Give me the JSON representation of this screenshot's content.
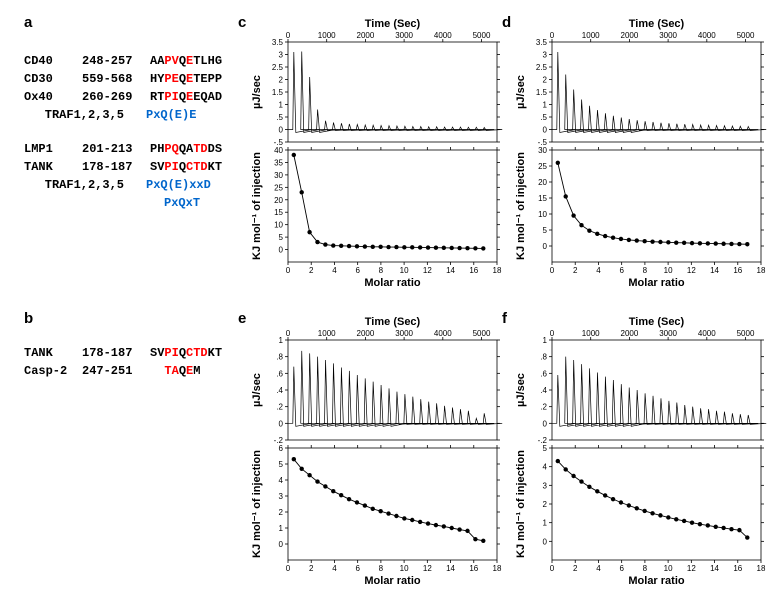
{
  "panel_labels": {
    "a": "a",
    "b": "b",
    "c": "c",
    "d": "d",
    "e": "e",
    "f": "f"
  },
  "colors": {
    "red": "#ff0000",
    "blue": "#0066cc",
    "black": "#000000",
    "bg": "#ffffff"
  },
  "panel_a": {
    "rows": [
      {
        "name": "CD40",
        "range": "248-257",
        "seq": [
          [
            "AA",
            "b"
          ],
          [
            "PV",
            "r"
          ],
          [
            "Q",
            "b"
          ],
          [
            "E",
            "r"
          ],
          [
            "TLHG",
            "b"
          ]
        ]
      },
      {
        "name": "CD30",
        "range": "559-568",
        "seq": [
          [
            "HY",
            "b"
          ],
          [
            "PE",
            "r"
          ],
          [
            "Q",
            "b"
          ],
          [
            "E",
            "r"
          ],
          [
            "TEPP",
            "b"
          ]
        ]
      },
      {
        "name": "Ox40",
        "range": "260-269",
        "seq": [
          [
            "RT",
            "b"
          ],
          [
            "PI",
            "r"
          ],
          [
            "Q",
            "b"
          ],
          [
            "E",
            "r"
          ],
          [
            "EQAD",
            "b"
          ]
        ]
      },
      {
        "name": "",
        "range": "TRAF1,2,3,5",
        "seq": [
          [
            "P",
            "bl"
          ],
          [
            "x",
            "bl"
          ],
          [
            "Q(E)E",
            "bl"
          ]
        ]
      }
    ],
    "rows2": [
      {
        "name": "LMP1",
        "range": "201-213",
        "seq": [
          [
            "PH",
            "b"
          ],
          [
            "PQ",
            "r"
          ],
          [
            "QA",
            "b"
          ],
          [
            "TD",
            "r"
          ],
          [
            "DS",
            "b"
          ]
        ]
      },
      {
        "name": "TANK",
        "range": "178-187",
        "seq": [
          [
            "SV",
            "b"
          ],
          [
            "PI",
            "r"
          ],
          [
            "Q",
            "b"
          ],
          [
            "C",
            "r"
          ],
          [
            "TD",
            "r"
          ],
          [
            "KT",
            "b"
          ]
        ]
      },
      {
        "name": "",
        "range": "TRAF1,2,3,5",
        "seq": [
          [
            "P",
            "bl"
          ],
          [
            "x",
            "bl"
          ],
          [
            "Q(E)",
            "bl"
          ],
          [
            "xx",
            "bl"
          ],
          [
            "D",
            "bl"
          ]
        ]
      },
      {
        "name": "",
        "range": "",
        "seq": [
          [
            "P",
            "bl"
          ],
          [
            "x",
            "bl"
          ],
          [
            "Q",
            "bl"
          ],
          [
            "x",
            "bl"
          ],
          [
            "T",
            "bl"
          ]
        ]
      }
    ]
  },
  "panel_b": {
    "rows": [
      {
        "name": "TANK",
        "range": "178-187",
        "seq": [
          [
            "SV",
            "b"
          ],
          [
            "PI",
            "r"
          ],
          [
            "Q",
            "b"
          ],
          [
            "C",
            "r"
          ],
          [
            "TD",
            "r"
          ],
          [
            "KT",
            "b"
          ]
        ]
      },
      {
        "name": "Casp-2",
        "range": "247-251",
        "seq": [
          [
            "  ",
            "b"
          ],
          [
            "TA",
            "r"
          ],
          [
            "Q",
            "b"
          ],
          [
            "E",
            "r"
          ],
          [
            "M",
            "b"
          ]
        ]
      }
    ]
  },
  "itc": {
    "time_label": "Time (Sec)",
    "time_ticks": [
      0,
      1000,
      2000,
      3000,
      4000,
      5000
    ],
    "molar_label": "Molar ratio",
    "molar_ticks": [
      0,
      2,
      4,
      6,
      8,
      10,
      12,
      14,
      16,
      18
    ],
    "top_ylabel": "µJ/sec",
    "bot_ylabel": "KJ mol⁻¹ of injection",
    "panels": {
      "c": {
        "top_ylim": [
          -0.5,
          3.5
        ],
        "top_yticks": [
          -0.5,
          0,
          0.5,
          1,
          1.5,
          2,
          2.5,
          3,
          3.5
        ],
        "bot_ylim": [
          -5,
          40
        ],
        "bot_yticks": [
          0,
          5,
          10,
          15,
          20,
          25,
          30,
          35,
          40
        ],
        "spikes": [
          3.1,
          3.12,
          2.1,
          0.8,
          0.35,
          0.28,
          0.25,
          0.22,
          0.2,
          0.18,
          0.17,
          0.16,
          0.15,
          0.14,
          0.13,
          0.12,
          0.12,
          0.11,
          0.11,
          0.1,
          0.1,
          0.1,
          0.09,
          0.09,
          0.08
        ],
        "dots": [
          38,
          23,
          7,
          3,
          2,
          1.6,
          1.5,
          1.4,
          1.3,
          1.2,
          1.1,
          1.1,
          1.0,
          1.0,
          0.9,
          0.9,
          0.85,
          0.8,
          0.75,
          0.7,
          0.65,
          0.6,
          0.55,
          0.5,
          0.45
        ]
      },
      "d": {
        "top_ylim": [
          -0.5,
          3.5
        ],
        "top_yticks": [
          -0.5,
          0,
          0.5,
          1,
          1.5,
          2,
          2.5,
          3,
          3.5
        ],
        "bot_ylim": [
          -5,
          30
        ],
        "bot_yticks": [
          0,
          5,
          10,
          15,
          20,
          25,
          30
        ],
        "spikes": [
          3.1,
          2.2,
          1.6,
          1.2,
          0.95,
          0.78,
          0.65,
          0.55,
          0.48,
          0.42,
          0.37,
          0.33,
          0.3,
          0.27,
          0.25,
          0.23,
          0.21,
          0.2,
          0.18,
          0.17,
          0.16,
          0.15,
          0.14,
          0.13,
          0.12
        ],
        "dots": [
          26,
          15.5,
          9.5,
          6.5,
          4.8,
          3.8,
          3.1,
          2.6,
          2.2,
          1.9,
          1.7,
          1.5,
          1.35,
          1.25,
          1.15,
          1.05,
          1.0,
          0.9,
          0.85,
          0.8,
          0.75,
          0.7,
          0.65,
          0.6,
          0.55
        ]
      },
      "e": {
        "top_ylim": [
          -0.2,
          1.0
        ],
        "top_yticks": [
          -0.2,
          0,
          0.2,
          0.4,
          0.6,
          0.8,
          1.0
        ],
        "bot_ylim": [
          -1,
          6
        ],
        "bot_yticks": [
          0,
          1,
          2,
          3,
          4,
          5,
          6
        ],
        "spikes": [
          0.68,
          0.87,
          0.84,
          0.8,
          0.76,
          0.72,
          0.67,
          0.63,
          0.58,
          0.54,
          0.5,
          0.46,
          0.42,
          0.38,
          0.35,
          0.32,
          0.29,
          0.26,
          0.24,
          0.21,
          0.19,
          0.17,
          0.15,
          0.06,
          0.12
        ],
        "dots": [
          5.3,
          4.7,
          4.3,
          3.9,
          3.6,
          3.3,
          3.05,
          2.8,
          2.6,
          2.4,
          2.2,
          2.05,
          1.9,
          1.75,
          1.6,
          1.5,
          1.38,
          1.28,
          1.18,
          1.1,
          1.0,
          0.9,
          0.82,
          0.3,
          0.2
        ]
      },
      "f": {
        "top_ylim": [
          -0.2,
          1.0
        ],
        "top_yticks": [
          -0.2,
          0,
          0.2,
          0.4,
          0.6,
          0.8,
          1.0
        ],
        "bot_ylim": [
          -1,
          5
        ],
        "bot_yticks": [
          0,
          1,
          2,
          3,
          4,
          5
        ],
        "spikes": [
          0.58,
          0.8,
          0.76,
          0.71,
          0.66,
          0.61,
          0.56,
          0.52,
          0.47,
          0.43,
          0.4,
          0.36,
          0.33,
          0.3,
          0.27,
          0.25,
          0.22,
          0.2,
          0.18,
          0.17,
          0.15,
          0.14,
          0.12,
          0.11,
          0.1
        ],
        "dots": [
          4.3,
          3.85,
          3.5,
          3.2,
          2.92,
          2.68,
          2.46,
          2.26,
          2.08,
          1.92,
          1.77,
          1.63,
          1.5,
          1.39,
          1.28,
          1.18,
          1.09,
          1.0,
          0.92,
          0.85,
          0.78,
          0.72,
          0.65,
          0.6,
          0.2
        ]
      }
    }
  },
  "chart_style": {
    "line_width": 0.7,
    "dot_radius": 2.2,
    "dot_fill": "#000000",
    "axis_fontsize": 11,
    "tick_fontsize": 8,
    "tick_len": 3
  }
}
